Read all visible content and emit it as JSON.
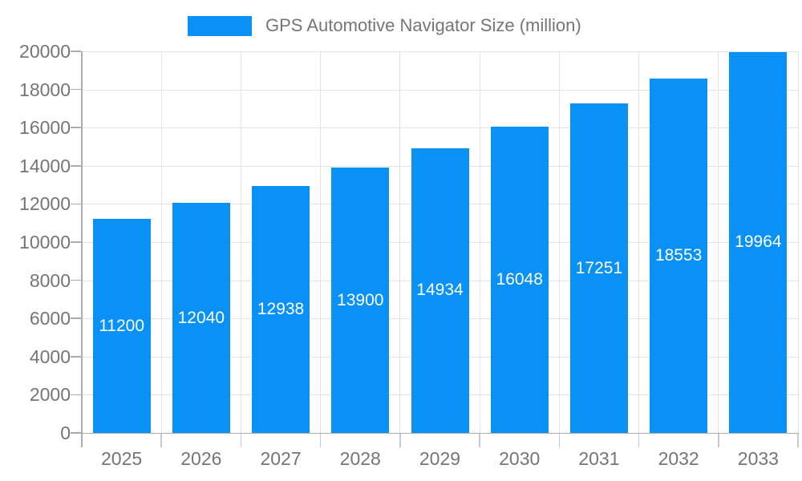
{
  "chart_data": {
    "type": "bar",
    "title": "",
    "legend": "GPS Automotive Navigator Size (million)",
    "legend_position": "top",
    "categories": [
      "2025",
      "2026",
      "2027",
      "2028",
      "2029",
      "2030",
      "2031",
      "2032",
      "2033"
    ],
    "series": [
      {
        "name": "GPS Automotive Navigator Size (million)",
        "values": [
          11200,
          12040,
          12938,
          13900,
          14934,
          16048,
          17251,
          18553,
          19964
        ]
      }
    ],
    "value_labels_visible": true,
    "xlabel": "",
    "ylabel": "",
    "ylim": [
      0,
      20000
    ],
    "y_ticks": [
      0,
      2000,
      4000,
      6000,
      8000,
      10000,
      12000,
      14000,
      16000,
      18000,
      20000
    ],
    "grid": "horizontal and vertical category boundaries",
    "colors": {
      "bar": "#0a91f5",
      "value_label_text": "#ffffff",
      "axis_text": "#757575",
      "legend_text": "#757575",
      "gridline": "#e3e3e3",
      "axis_line": "#adadad",
      "tick_line": "#c9c9c9",
      "background": "#ffffff"
    }
  }
}
